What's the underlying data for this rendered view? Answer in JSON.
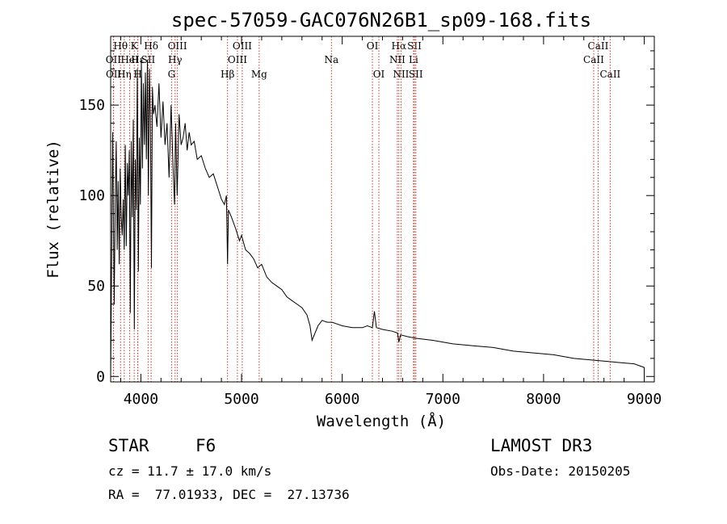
{
  "chart_data": {
    "type": "line",
    "title": "spec-57059-GAC076N26B1_sp09-168.fits",
    "xlabel": "Wavelength (Å)",
    "ylabel": "Flux (relative)",
    "xlim": [
      3700,
      9100
    ],
    "ylim": [
      -3,
      188
    ],
    "xticks": [
      {
        "value": 4000,
        "label": "4000"
      },
      {
        "value": 5000,
        "label": "5000"
      },
      {
        "value": 6000,
        "label": "6000"
      },
      {
        "value": 7000,
        "label": "7000"
      },
      {
        "value": 8000,
        "label": "8000"
      },
      {
        "value": 9000,
        "label": "9000"
      }
    ],
    "yticks": [
      {
        "value": 0,
        "label": "0"
      },
      {
        "value": 50,
        "label": "50"
      },
      {
        "value": 100,
        "label": "100"
      },
      {
        "value": 150,
        "label": "150"
      }
    ],
    "series": [
      {
        "name": "spectrum",
        "x": [
          3700,
          3720,
          3735,
          3745,
          3755,
          3765,
          3775,
          3785,
          3795,
          3805,
          3815,
          3825,
          3835,
          3845,
          3855,
          3865,
          3875,
          3885,
          3895,
          3905,
          3915,
          3925,
          3935,
          3945,
          3955,
          3965,
          3975,
          3985,
          3995,
          4005,
          4015,
          4025,
          4035,
          4045,
          4055,
          4065,
          4075,
          4085,
          4095,
          4105,
          4115,
          4125,
          4140,
          4160,
          4180,
          4200,
          4220,
          4240,
          4260,
          4280,
          4300,
          4320,
          4335,
          4345,
          4360,
          4380,
          4400,
          4420,
          4440,
          4460,
          4480,
          4500,
          4530,
          4560,
          4600,
          4640,
          4680,
          4720,
          4760,
          4800,
          4830,
          4850,
          4861,
          4870,
          4900,
          4940,
          4980,
          5000,
          5040,
          5080,
          5120,
          5160,
          5200,
          5250,
          5300,
          5350,
          5400,
          5450,
          5500,
          5550,
          5600,
          5650,
          5680,
          5700,
          5730,
          5760,
          5800,
          5850,
          5900,
          5950,
          6000,
          6100,
          6200,
          6250,
          6300,
          6320,
          6340,
          6400,
          6500,
          6550,
          6563,
          6580,
          6650,
          6750,
          6900,
          7100,
          7300,
          7500,
          7700,
          7900,
          8100,
          8300,
          8500,
          8700,
          8900,
          9000,
          9000
        ],
        "y": [
          0,
          135,
          40,
          95,
          130,
          70,
          108,
          62,
          115,
          88,
          78,
          98,
          70,
          128,
          72,
          118,
          100,
          125,
          35,
          130,
          88,
          142,
          26,
          120,
          92,
          170,
          58,
          132,
          95,
          175,
          115,
          162,
          128,
          168,
          120,
          175,
          100,
          170,
          142,
          60,
          160,
          145,
          150,
          138,
          162,
          132,
          152,
          128,
          140,
          110,
          150,
          115,
          95,
          140,
          100,
          145,
          128,
          132,
          140,
          125,
          135,
          128,
          130,
          120,
          122,
          115,
          110,
          112,
          105,
          98,
          95,
          100,
          62,
          92,
          88,
          82,
          75,
          78,
          70,
          68,
          65,
          60,
          62,
          55,
          52,
          50,
          48,
          44,
          42,
          40,
          38,
          34,
          28,
          20,
          24,
          28,
          31,
          30,
          30,
          29,
          28,
          27,
          27,
          28,
          27,
          36,
          27,
          26,
          25,
          24,
          19,
          23,
          22,
          21,
          20,
          18,
          17,
          16,
          14,
          13,
          12,
          10,
          9,
          8,
          7,
          5,
          0
        ]
      }
    ],
    "spectral_lines": [
      {
        "name": "Hθ",
        "x": 3798,
        "row": 0
      },
      {
        "name": "OII",
        "x": 3727,
        "row": 1
      },
      {
        "name": "OII",
        "x": 3729,
        "row": 2
      },
      {
        "name": "Hη",
        "x": 3835,
        "row": 2
      },
      {
        "name": "HeI",
        "x": 3889,
        "row": 1
      },
      {
        "name": "K",
        "x": 3934,
        "row": 0
      },
      {
        "name": "H",
        "x": 3969,
        "row": 2
      },
      {
        "name": "Hε",
        "x": 3970,
        "row": 1
      },
      {
        "name": "Hδ",
        "x": 4102,
        "row": 0
      },
      {
        "name": "SII",
        "x": 4072,
        "row": 1
      },
      {
        "name": "OIII",
        "x": 4363,
        "row": 0
      },
      {
        "name": "Hγ",
        "x": 4340,
        "row": 1
      },
      {
        "name": "G",
        "x": 4305,
        "row": 2
      },
      {
        "name": "Hβ",
        "x": 4861,
        "row": 2
      },
      {
        "name": "OIII",
        "x": 5007,
        "row": 0
      },
      {
        "name": "OIII",
        "x": 4959,
        "row": 1
      },
      {
        "name": "Mg",
        "x": 5175,
        "row": 2
      },
      {
        "name": "Na",
        "x": 5893,
        "row": 1
      },
      {
        "name": "OI",
        "x": 6300,
        "row": 0
      },
      {
        "name": "OI",
        "x": 6364,
        "row": 2
      },
      {
        "name": "Hα",
        "x": 6563,
        "row": 0
      },
      {
        "name": "NII",
        "x": 6548,
        "row": 1
      },
      {
        "name": "NII",
        "x": 6584,
        "row": 2
      },
      {
        "name": "SII",
        "x": 6717,
        "row": 0
      },
      {
        "name": "Li",
        "x": 6708,
        "row": 1
      },
      {
        "name": "SII",
        "x": 6731,
        "row": 2
      },
      {
        "name": "CaII",
        "x": 8542,
        "row": 0
      },
      {
        "name": "CaII",
        "x": 8498,
        "row": 1
      },
      {
        "name": "CaII",
        "x": 8662,
        "row": 2
      }
    ]
  },
  "info": {
    "object_class": "STAR",
    "subclass": "F6",
    "survey": "LAMOST DR3",
    "redshift": "cz = 11.7 ± 17.0 km/s",
    "obs_date": "Obs-Date: 20150205",
    "coords": "RA =  77.01933, DEC =  27.13736"
  }
}
